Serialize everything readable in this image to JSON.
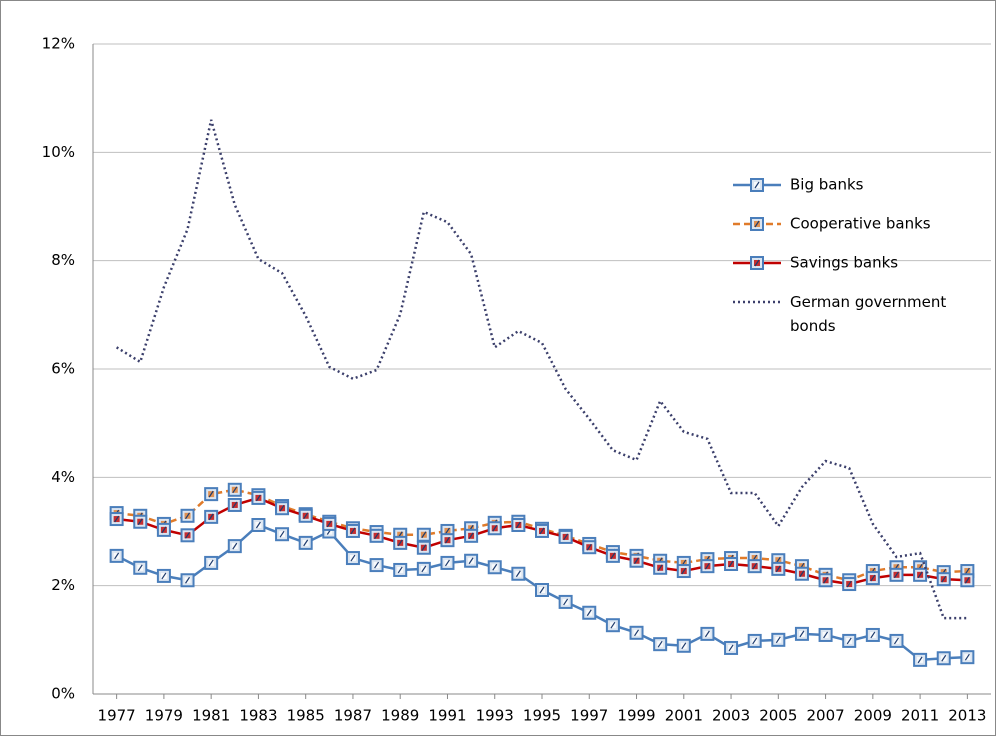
{
  "chart_data": {
    "type": "line",
    "x": [
      1977,
      1978,
      1979,
      1980,
      1981,
      1982,
      1983,
      1984,
      1985,
      1986,
      1987,
      1988,
      1989,
      1990,
      1991,
      1992,
      1993,
      1994,
      1995,
      1996,
      1997,
      1998,
      1999,
      2000,
      2001,
      2002,
      2003,
      2004,
      2005,
      2006,
      2007,
      2008,
      2009,
      2010,
      2011,
      2012,
      2013
    ],
    "xlim": [
      1976,
      2014
    ],
    "xticks": [
      1977,
      1979,
      1981,
      1983,
      1985,
      1987,
      1989,
      1991,
      1993,
      1995,
      1997,
      1999,
      2001,
      2003,
      2005,
      2007,
      2009,
      2011,
      2013
    ],
    "ylim": [
      0,
      12
    ],
    "yticks": [
      {
        "value": 0,
        "label": "0%"
      },
      {
        "value": 2,
        "label": "2%"
      },
      {
        "value": 4,
        "label": "4%"
      },
      {
        "value": 6,
        "label": "6%"
      },
      {
        "value": 8,
        "label": "8%"
      },
      {
        "value": 10,
        "label": "10%"
      },
      {
        "value": 12,
        "label": "12%"
      }
    ],
    "grid": true,
    "legend": "right",
    "series": [
      {
        "name": "Big banks",
        "color": "#4a7ebb",
        "dash": "solid",
        "marker": true,
        "values": [
          2.55,
          2.33,
          2.18,
          2.1,
          2.42,
          2.73,
          3.12,
          2.95,
          2.79,
          3.0,
          2.51,
          2.38,
          2.29,
          2.31,
          2.42,
          2.46,
          2.34,
          2.22,
          1.92,
          1.7,
          1.5,
          1.27,
          1.13,
          0.92,
          0.89,
          1.11,
          0.85,
          0.98,
          1.0,
          1.11,
          1.09,
          0.98,
          1.09,
          0.98,
          0.63,
          0.66,
          0.68
        ]
      },
      {
        "name": "Cooperative banks",
        "color": "#e07b2a",
        "dash": "dash",
        "marker": true,
        "values": [
          3.34,
          3.29,
          3.14,
          3.29,
          3.69,
          3.77,
          3.67,
          3.47,
          3.32,
          3.18,
          3.06,
          2.99,
          2.94,
          2.94,
          3.01,
          3.06,
          3.16,
          3.18,
          3.05,
          2.92,
          2.77,
          2.62,
          2.55,
          2.46,
          2.42,
          2.49,
          2.51,
          2.51,
          2.47,
          2.36,
          2.2,
          2.1,
          2.27,
          2.34,
          2.34,
          2.25,
          2.27
        ]
      },
      {
        "name": "Savings banks",
        "color": "#c00000",
        "dash": "solid",
        "marker": true,
        "values": [
          3.23,
          3.18,
          3.03,
          2.93,
          3.27,
          3.49,
          3.62,
          3.43,
          3.29,
          3.14,
          3.01,
          2.92,
          2.79,
          2.7,
          2.84,
          2.92,
          3.06,
          3.12,
          3.01,
          2.9,
          2.71,
          2.55,
          2.46,
          2.33,
          2.27,
          2.36,
          2.4,
          2.36,
          2.31,
          2.22,
          2.1,
          2.03,
          2.14,
          2.2,
          2.2,
          2.12,
          2.1
        ]
      },
      {
        "name": "German government bonds",
        "color": "#3b3f6b",
        "dash": "dot",
        "marker": false,
        "values": [
          6.4,
          6.13,
          7.51,
          8.58,
          10.6,
          9.03,
          8.03,
          7.77,
          6.98,
          6.04,
          5.82,
          5.98,
          7.01,
          8.9,
          8.71,
          8.12,
          6.4,
          6.7,
          6.48,
          5.63,
          5.08,
          4.5,
          4.32,
          5.41,
          4.84,
          4.71,
          3.71,
          3.71,
          3.1,
          3.82,
          4.3,
          4.17,
          3.14,
          2.53,
          2.6,
          1.4,
          1.4
        ]
      }
    ]
  }
}
